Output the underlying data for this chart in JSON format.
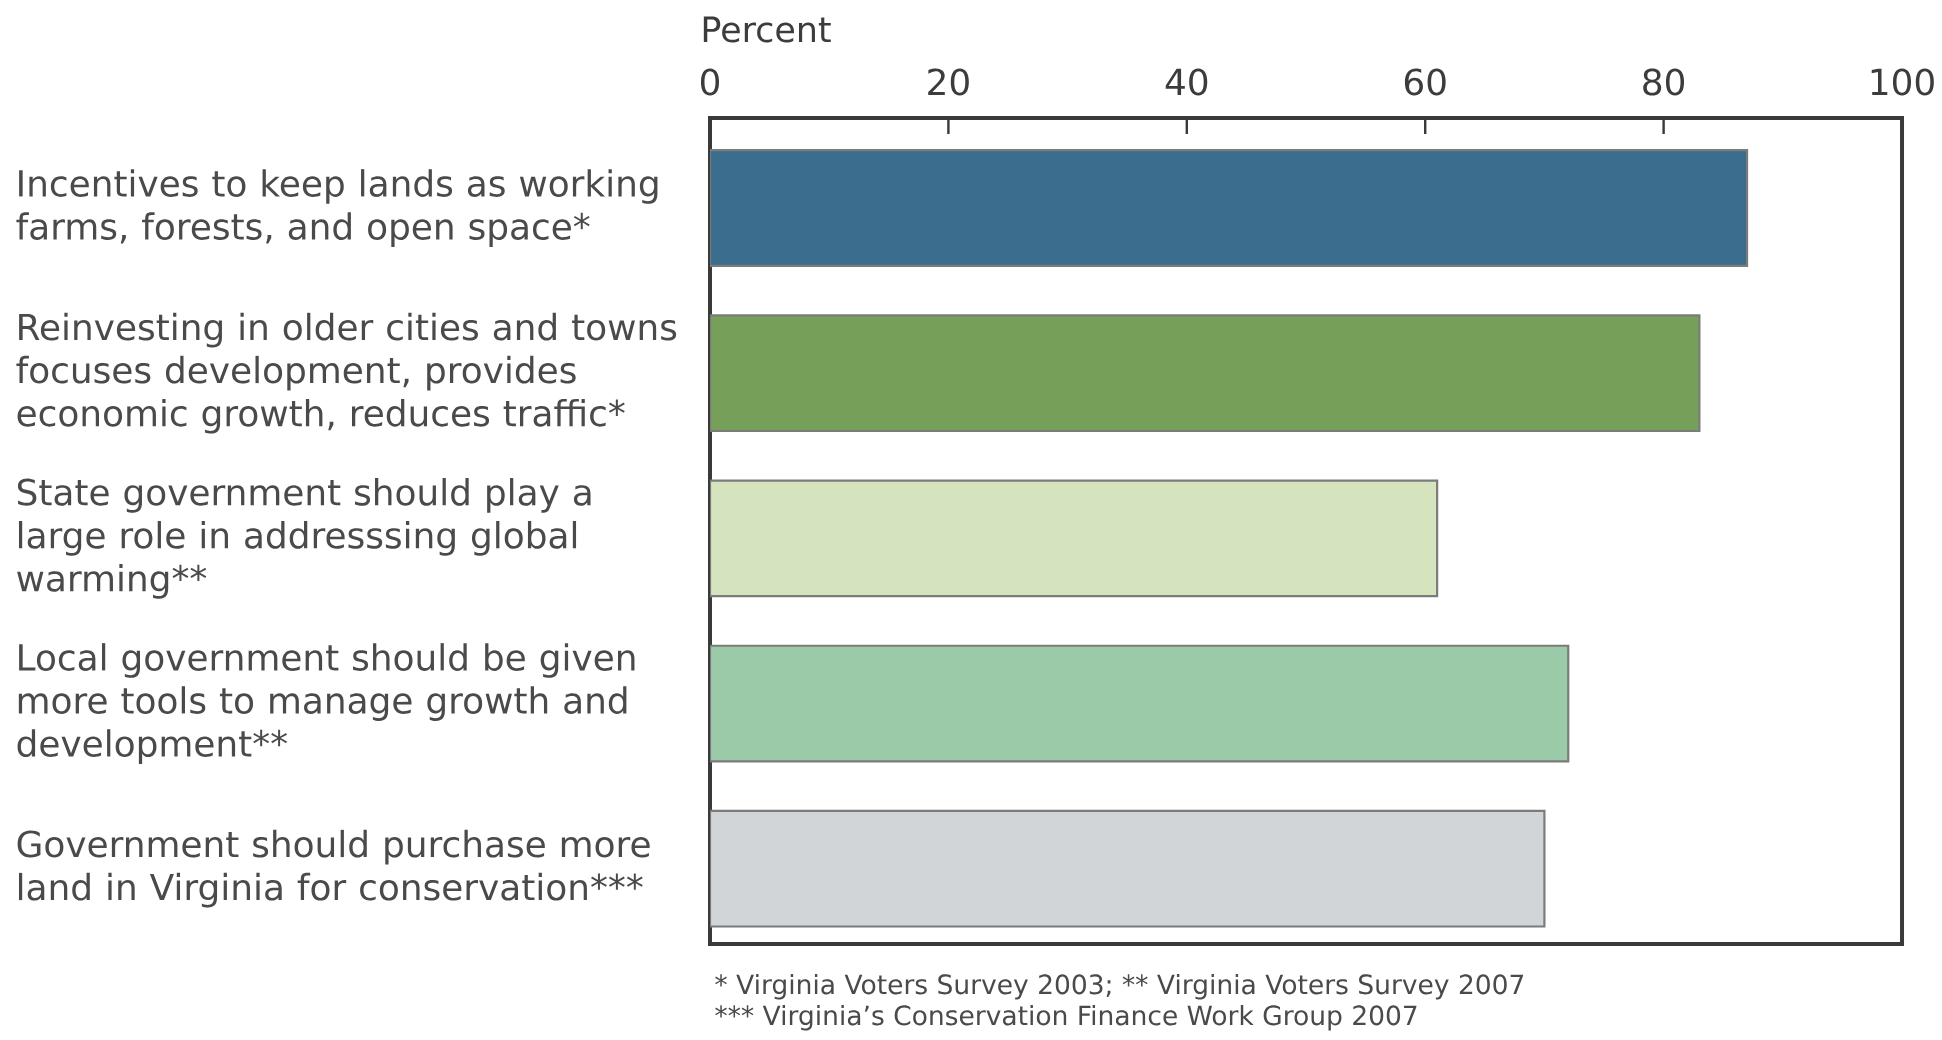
{
  "chart_data": {
    "type": "bar",
    "orientation": "horizontal",
    "xlabel": "Percent",
    "categories": [
      "Incentives to keep lands as working farms, forests, and open space*",
      "Reinvesting in older cities and towns focuses development, provides economic growth, reduces traffic*",
      "State government should play a large role in addresssing global warming**",
      "Local government should be given more tools to manage growth and development**",
      "Government should purchase more land in Virginia for conservation***"
    ],
    "values": [
      87,
      83,
      61,
      72,
      70
    ],
    "colors": [
      "#3a6d8e",
      "#769f59",
      "#d5e4be",
      "#9bcaa9",
      "#d2d5d8"
    ],
    "xlim": [
      0,
      100
    ],
    "xticks": [
      0,
      20,
      40,
      60,
      80,
      100
    ],
    "annotations": [
      "* Virginia Voters Survey 2003; ** Virginia Voters Survey 2007",
      "*** Virginia’s Conservation Finance Work Group 2007"
    ]
  }
}
